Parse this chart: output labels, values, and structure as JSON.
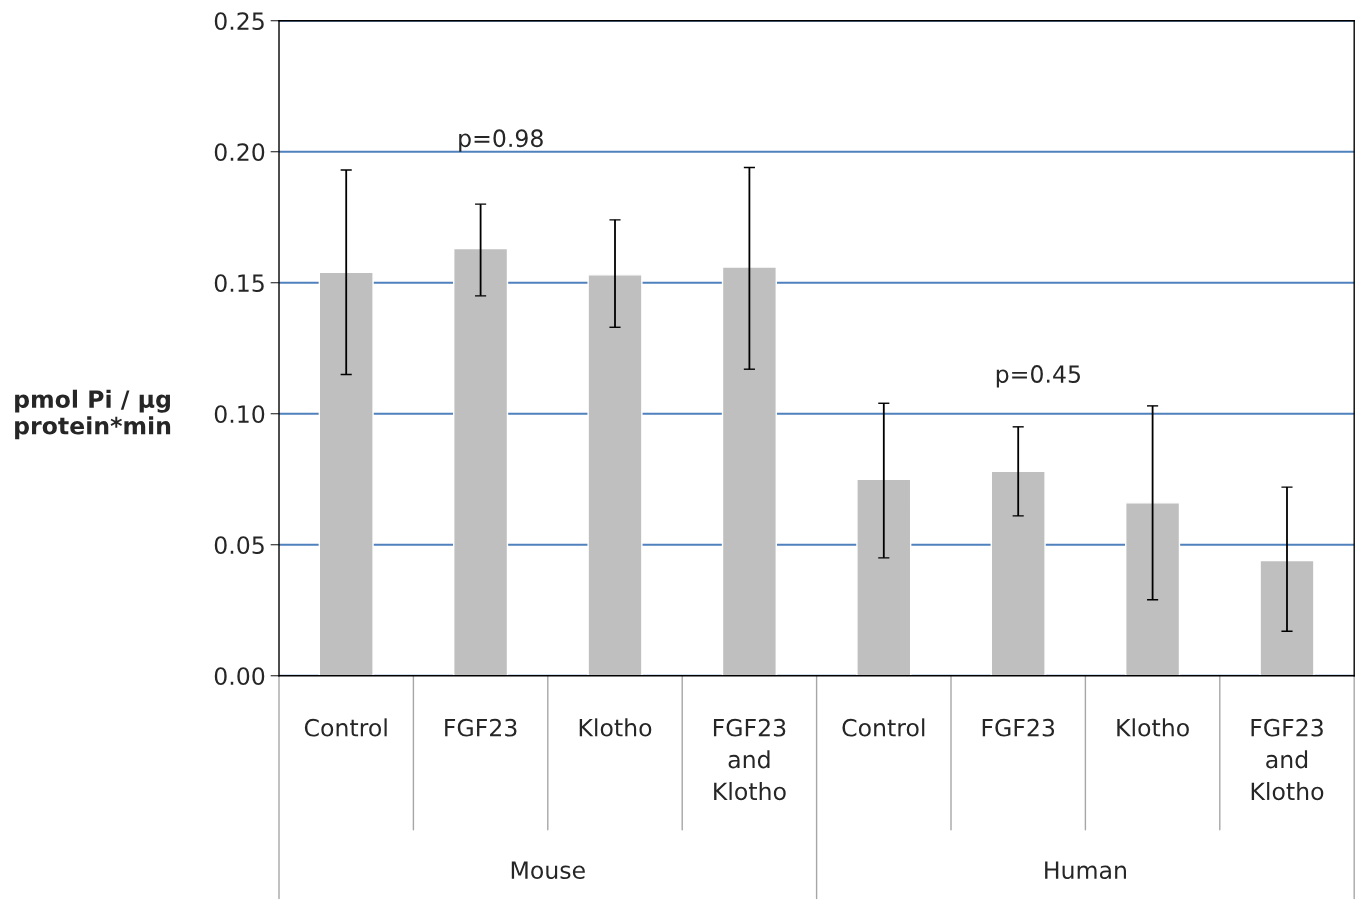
{
  "chart_data": {
    "type": "bar",
    "ylabel": "pmol Pi / µg\nprotein*min",
    "categories": [
      "Control",
      "FGF23",
      "Klotho",
      "FGF23\nand\nKlotho",
      "Control",
      "FGF23",
      "Klotho",
      "FGF23\nand\nKlotho"
    ],
    "values": [
      0.154,
      0.163,
      0.153,
      0.156,
      0.075,
      0.078,
      0.066,
      0.044
    ],
    "errors": [
      [
        0.115,
        0.193
      ],
      [
        0.145,
        0.18
      ],
      [
        0.133,
        0.174
      ],
      [
        0.117,
        0.194
      ],
      [
        0.045,
        0.104
      ],
      [
        0.061,
        0.095
      ],
      [
        0.029,
        0.103
      ],
      [
        0.017,
        0.072
      ]
    ],
    "color": "#bfbfbf",
    "ylim": [
      0,
      0.25
    ],
    "yticks": [
      {
        "value": 0,
        "label": "0.00"
      },
      {
        "value": 0.05,
        "label": "0.05"
      },
      {
        "value": 0.1,
        "label": "0.10"
      },
      {
        "value": 0.15,
        "label": "0.15"
      },
      {
        "value": 0.2,
        "label": "0.20"
      },
      {
        "value": 0.25,
        "label": "0.25"
      }
    ],
    "grid": "y",
    "annotations": [
      "p=0.98",
      "p=0.45",
      "Mouse",
      "Human"
    ]
  }
}
